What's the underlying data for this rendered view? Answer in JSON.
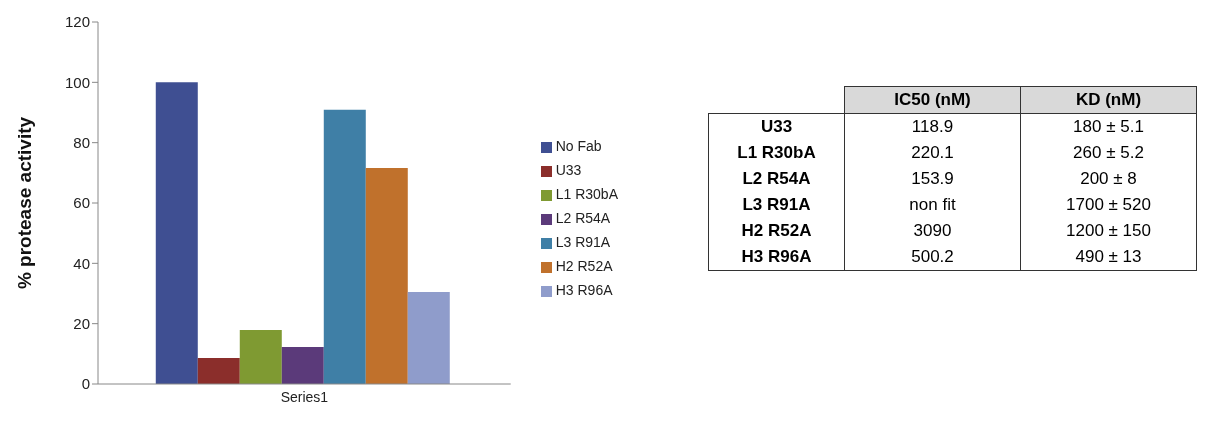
{
  "chart_data": [
    {
      "type": "bar",
      "ylabel": "% protease activity",
      "categories": [
        "Series1"
      ],
      "series": [
        {
          "name": "No Fab",
          "color": "#3f4f92",
          "values": [
            100
          ]
        },
        {
          "name": "U33",
          "color": "#8b2e2b",
          "values": [
            8.6
          ]
        },
        {
          "name": "L1 R30bA",
          "color": "#7f9a32",
          "values": [
            17.9
          ]
        },
        {
          "name": "L2 R54A",
          "color": "#5b3a7a",
          "values": [
            12.3
          ]
        },
        {
          "name": "L3 R91A",
          "color": "#3f7fa6",
          "values": [
            90.9
          ]
        },
        {
          "name": "H2 R52A",
          "color": "#c0712c",
          "values": [
            71.6
          ]
        },
        {
          "name": "H3 R96A",
          "color": "#8f9ccb",
          "values": [
            30.5
          ]
        }
      ],
      "ylim": [
        0,
        120
      ],
      "yticks": [
        0,
        20,
        40,
        60,
        80,
        100,
        120
      ],
      "grid": false,
      "legend": "right"
    },
    {
      "type": "other",
      "annotations": [
        "IC50 (nM)",
        "KD (nM)",
        "U33",
        "118.9",
        "180 ± 5.1",
        "L1 R30bA",
        "220.1",
        "260 ± 5.2",
        "L2 R54A",
        "153.9",
        "200 ± 8",
        "L3 R91A",
        "non fit",
        "1700 ± 520",
        "H2 R52A",
        "3090",
        "1200 ± 150",
        "H3 R96A",
        "500.2",
        "490  ± 13"
      ]
    }
  ]
}
